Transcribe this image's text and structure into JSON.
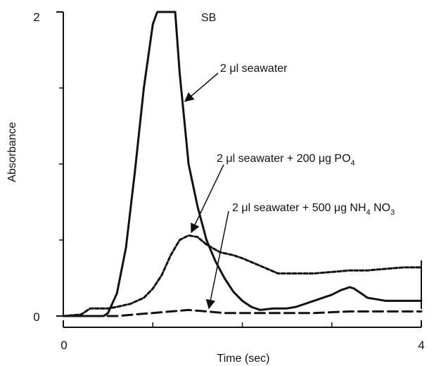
{
  "chart_data": {
    "type": "line",
    "xlabel": "Time (sec)",
    "ylabel": "Absorbance",
    "xlim": [
      0,
      4
    ],
    "ylim": [
      0,
      2
    ],
    "x_tick_labels": [
      {
        "value": 0,
        "label": "0"
      },
      {
        "value": 4,
        "label": "4"
      }
    ],
    "y_tick_labels": [
      {
        "value": 0,
        "label": "0"
      },
      {
        "value": 2,
        "label": "2"
      }
    ],
    "x_minor_ticks": [
      1,
      2,
      3
    ],
    "y_minor_ticks": [
      0.5,
      1,
      1.5
    ],
    "grid": false,
    "series": [
      {
        "color": "#111111",
        "dash": "solid",
        "x": [
          0,
          0.3,
          0.45,
          0.5,
          0.6,
          0.7,
          0.8,
          0.9,
          1.0,
          1.05,
          1.1,
          1.15,
          1.25,
          1.3,
          1.35,
          1.4,
          1.5,
          1.6,
          1.7,
          1.8,
          1.9,
          2.0,
          2.1,
          2.2,
          2.35,
          2.5,
          2.6,
          2.8,
          2.9,
          3.0,
          3.1,
          3.2,
          3.25,
          3.3,
          3.4,
          3.5,
          3.6,
          3.8,
          4.0
        ],
        "y": [
          0,
          0,
          0,
          0.02,
          0.15,
          0.45,
          0.95,
          1.5,
          1.92,
          2.0,
          2.0,
          2.0,
          2.0,
          1.6,
          1.3,
          1.0,
          0.72,
          0.5,
          0.36,
          0.25,
          0.16,
          0.1,
          0.06,
          0.04,
          0.05,
          0.05,
          0.06,
          0.1,
          0.12,
          0.14,
          0.17,
          0.19,
          0.18,
          0.16,
          0.12,
          0.11,
          0.1,
          0.1,
          0.1
        ]
      },
      {
        "color": "#111111",
        "dash": "dotted",
        "x": [
          0,
          0.2,
          0.3,
          0.4,
          0.5,
          0.6,
          0.75,
          0.9,
          1.0,
          1.1,
          1.2,
          1.3,
          1.4,
          1.5,
          1.6,
          1.75,
          1.9,
          2.0,
          2.2,
          2.4,
          2.6,
          2.8,
          3.0,
          3.2,
          3.4,
          3.6,
          3.8,
          4.0
        ],
        "y": [
          0,
          0.01,
          0.05,
          0.05,
          0.05,
          0.06,
          0.08,
          0.12,
          0.18,
          0.27,
          0.4,
          0.5,
          0.53,
          0.52,
          0.47,
          0.42,
          0.4,
          0.38,
          0.33,
          0.28,
          0.28,
          0.28,
          0.29,
          0.3,
          0.3,
          0.31,
          0.32,
          0.32
        ]
      },
      {
        "color": "#111111",
        "dash": "dashed",
        "x": [
          0,
          0.4,
          0.6,
          0.8,
          1.0,
          1.2,
          1.4,
          1.6,
          1.8,
          2.0,
          2.4,
          2.8,
          3.2,
          3.6,
          4.0
        ],
        "y": [
          0,
          0,
          0.0,
          0.01,
          0.02,
          0.03,
          0.04,
          0.03,
          0.02,
          0.02,
          0.02,
          0.02,
          0.03,
          0.03,
          0.03
        ]
      }
    ],
    "annotations": [
      {
        "text": "SB"
      },
      {
        "text": "2 μl seawater",
        "arrow": true
      },
      {
        "text_main": "2 μl seawater + 200 μg PO",
        "sub": "4",
        "arrow": true
      },
      {
        "text_main": "2 μl seawater + 500 μg NH",
        "sub1": "4",
        "mid": " NO",
        "sub2": "3",
        "arrow": true
      }
    ]
  }
}
